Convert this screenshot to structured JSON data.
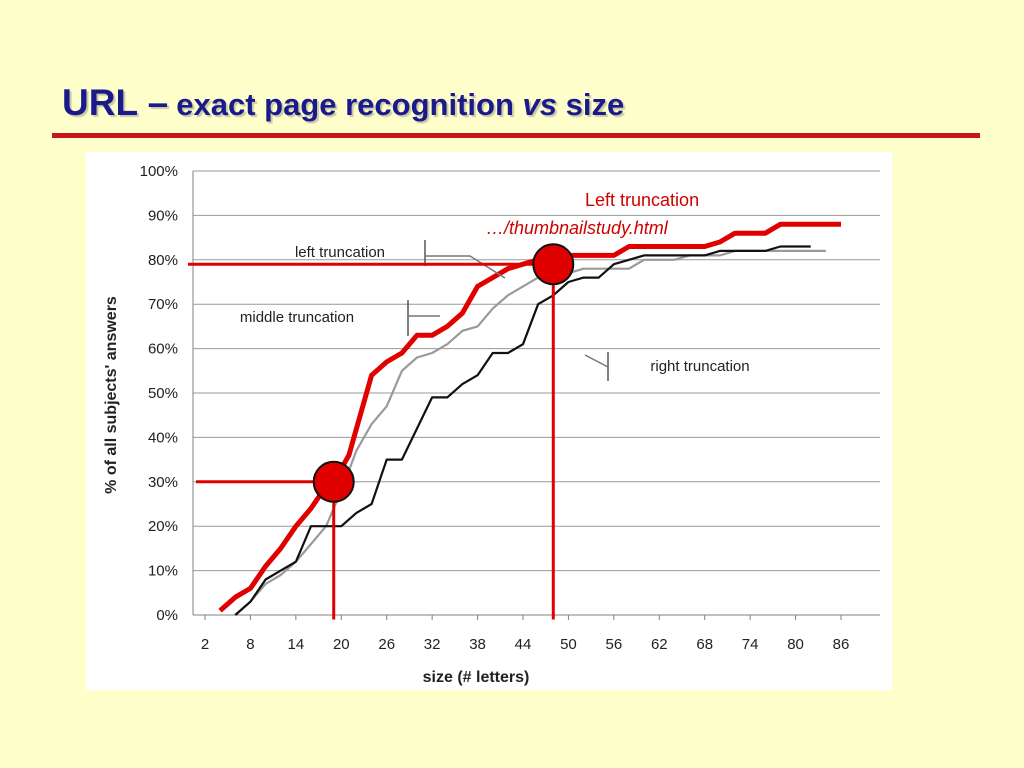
{
  "title": {
    "main": "URL –",
    "sub_a": "exact page recognition",
    "sub_b": "vs",
    "sub_c": "size"
  },
  "colors": {
    "background": "#ffffcc",
    "title": "#1a1a8c",
    "rule": "#c8141e",
    "highlight": "#e00000"
  },
  "annotation": {
    "line1": "Left truncation",
    "line2": "…/thumbnailstudy.html"
  },
  "chart_data": {
    "type": "line",
    "xlabel": "size (# letters)",
    "ylabel": "% of all subjects' answers",
    "x_ticks": [
      "2",
      "8",
      "14",
      "20",
      "26",
      "32",
      "38",
      "44",
      "50",
      "56",
      "62",
      "68",
      "74",
      "80",
      "86"
    ],
    "y_ticks": [
      "0%",
      "10%",
      "20%",
      "30%",
      "40%",
      "50%",
      "60%",
      "70%",
      "80%",
      "90%",
      "100%"
    ],
    "xlim": [
      2,
      86
    ],
    "ylim": [
      0,
      100
    ],
    "grid": "horizontal",
    "series": [
      {
        "name": "left truncation",
        "color": "#e00000",
        "points": [
          [
            4,
            1
          ],
          [
            6,
            4
          ],
          [
            8,
            6
          ],
          [
            10,
            11
          ],
          [
            12,
            15
          ],
          [
            14,
            20
          ],
          [
            16,
            24
          ],
          [
            18,
            29
          ],
          [
            20,
            33
          ],
          [
            21,
            36
          ],
          [
            24,
            54
          ],
          [
            26,
            57
          ],
          [
            28,
            59
          ],
          [
            30,
            63
          ],
          [
            32,
            63
          ],
          [
            34,
            65
          ],
          [
            36,
            68
          ],
          [
            38,
            74
          ],
          [
            40,
            76
          ],
          [
            42,
            78
          ],
          [
            44,
            79
          ],
          [
            46,
            80
          ],
          [
            48,
            80
          ],
          [
            50,
            81
          ],
          [
            56,
            81
          ],
          [
            58,
            83
          ],
          [
            66,
            83
          ],
          [
            68,
            83
          ],
          [
            70,
            84
          ],
          [
            72,
            86
          ],
          [
            76,
            86
          ],
          [
            78,
            88
          ],
          [
            86,
            88
          ]
        ]
      },
      {
        "name": "middle truncation",
        "color": "#9a9a9a",
        "points": [
          [
            6,
            0
          ],
          [
            8,
            3
          ],
          [
            10,
            7
          ],
          [
            12,
            9
          ],
          [
            14,
            12
          ],
          [
            16,
            16
          ],
          [
            18,
            20
          ],
          [
            20,
            28
          ],
          [
            22,
            37
          ],
          [
            24,
            43
          ],
          [
            26,
            47
          ],
          [
            28,
            55
          ],
          [
            30,
            58
          ],
          [
            32,
            59
          ],
          [
            34,
            61
          ],
          [
            36,
            64
          ],
          [
            38,
            65
          ],
          [
            40,
            69
          ],
          [
            42,
            72
          ],
          [
            44,
            74
          ],
          [
            46,
            76
          ],
          [
            48,
            77
          ],
          [
            50,
            77
          ],
          [
            52,
            78
          ],
          [
            58,
            78
          ],
          [
            60,
            80
          ],
          [
            64,
            80
          ],
          [
            66,
            81
          ],
          [
            70,
            81
          ],
          [
            72,
            82
          ],
          [
            84,
            82
          ]
        ]
      },
      {
        "name": "right truncation",
        "color": "#111111",
        "points": [
          [
            6,
            0
          ],
          [
            8,
            3
          ],
          [
            10,
            8
          ],
          [
            12,
            10
          ],
          [
            14,
            12
          ],
          [
            16,
            20
          ],
          [
            18,
            20
          ],
          [
            20,
            20
          ],
          [
            22,
            23
          ],
          [
            24,
            25
          ],
          [
            26,
            35
          ],
          [
            28,
            35
          ],
          [
            30,
            42
          ],
          [
            32,
            49
          ],
          [
            34,
            49
          ],
          [
            36,
            52
          ],
          [
            38,
            54
          ],
          [
            40,
            59
          ],
          [
            42,
            59
          ],
          [
            44,
            61
          ],
          [
            46,
            70
          ],
          [
            48,
            72
          ],
          [
            50,
            75
          ],
          [
            52,
            76
          ],
          [
            54,
            76
          ],
          [
            56,
            79
          ],
          [
            58,
            80
          ],
          [
            60,
            81
          ],
          [
            62,
            81
          ],
          [
            66,
            81
          ],
          [
            68,
            81
          ],
          [
            70,
            82
          ],
          [
            76,
            82
          ],
          [
            78,
            83
          ],
          [
            82,
            83
          ]
        ]
      }
    ],
    "highlights": [
      {
        "x": 19,
        "y": 30
      },
      {
        "x": 48,
        "y": 79
      }
    ]
  }
}
